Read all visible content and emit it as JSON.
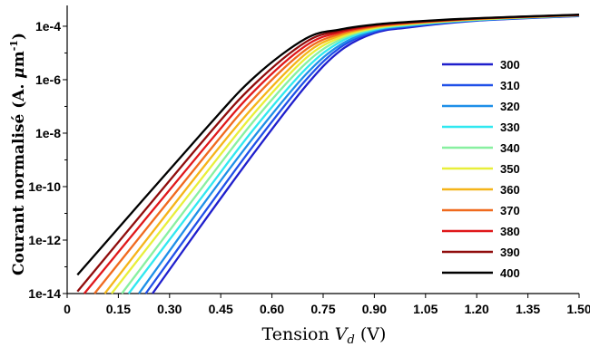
{
  "chart_data": {
    "type": "line",
    "xlabel": "Tension V_d (V)",
    "xlabel_parts": {
      "main": "Tension ",
      "var": "V",
      "sub": "d",
      "unit": " (V)"
    },
    "ylabel": "Courant normalisé (A. μm⁻¹)",
    "ylabel_parts": {
      "main": "Courant normalisé (A. ",
      "mu": "μ",
      "m": "m",
      "sup": "-1",
      "close": ")"
    },
    "x_range": [
      0,
      1.5
    ],
    "y_scale": "log",
    "y_range": [
      1e-14,
      0.0006
    ],
    "x_ticks": [
      "0",
      "0.15",
      "0.30",
      "0.45",
      "0.60",
      "0.75",
      "0.90",
      "1.05",
      "1.20",
      "1.35",
      "1.50"
    ],
    "x_tick_values": [
      0,
      0.15,
      0.3,
      0.45,
      0.6,
      0.75,
      0.9,
      1.05,
      1.2,
      1.35,
      1.5
    ],
    "y_ticks": [
      "1e-14",
      "1e-12",
      "1e-10",
      "1e-8",
      "1e-6",
      "1e-4"
    ],
    "y_tick_values": [
      1e-14,
      1e-12,
      1e-10,
      1e-08,
      1e-06,
      0.0001
    ],
    "grid": false,
    "legend_position": "right",
    "series": [
      {
        "name": "300",
        "color": "#1f1fcc",
        "x": [
          0.25,
          0.4,
          0.55,
          0.7,
          0.8,
          0.9,
          1.0,
          1.2,
          1.5
        ],
        "y": [
          1e-14,
          4.8e-12,
          2e-09,
          6e-07,
          1.2e-05,
          5.5e-05,
          9e-05,
          0.00016,
          0.00024
        ]
      },
      {
        "name": "310",
        "color": "#2050e8",
        "x": [
          0.23,
          0.4,
          0.55,
          0.7,
          0.8,
          0.9,
          1.0,
          1.2,
          1.5
        ],
        "y": [
          1e-14,
          1e-11,
          4e-09,
          1e-06,
          1.6e-05,
          6.2e-05,
          9.8e-05,
          0.000165,
          0.000245
        ]
      },
      {
        "name": "320",
        "color": "#1e8fe8",
        "x": [
          0.21,
          0.4,
          0.55,
          0.7,
          0.8,
          0.9,
          1.0,
          1.2,
          1.5
        ],
        "y": [
          1e-14,
          2.3e-11,
          8e-09,
          1.6e-06,
          2e-05,
          6.8e-05,
          0.000105,
          0.00017,
          0.00025
        ]
      },
      {
        "name": "330",
        "color": "#30e8f0",
        "x": [
          0.18,
          0.4,
          0.55,
          0.7,
          0.8,
          0.9,
          1.0,
          1.2,
          1.5
        ],
        "y": [
          1e-14,
          5e-11,
          1.6e-08,
          2.6e-06,
          2.6e-05,
          7.4e-05,
          0.00011,
          0.000175,
          0.000252
        ]
      },
      {
        "name": "340",
        "color": "#88f0a0",
        "x": [
          0.16,
          0.4,
          0.55,
          0.7,
          0.8,
          0.9,
          1.0,
          1.2,
          1.5
        ],
        "y": [
          1e-14,
          1.1e-10,
          3.2e-08,
          4.2e-06,
          3.2e-05,
          8e-05,
          0.000115,
          0.000178,
          0.000255
        ]
      },
      {
        "name": "350",
        "color": "#e8ef3a",
        "x": [
          0.13,
          0.4,
          0.55,
          0.7,
          0.8,
          0.9,
          1.0,
          1.2,
          1.5
        ],
        "y": [
          1e-14,
          2.5e-10,
          6e-08,
          6.5e-06,
          3.8e-05,
          8.6e-05,
          0.00012,
          0.000182,
          0.000258
        ]
      },
      {
        "name": "360",
        "color": "#f5b419",
        "x": [
          0.11,
          0.4,
          0.55,
          0.7,
          0.8,
          0.9,
          1.0,
          1.2,
          1.5
        ],
        "y": [
          1e-14,
          5.5e-10,
          1.1e-07,
          9.5e-06,
          4.5e-05,
          9.2e-05,
          0.000125,
          0.000186,
          0.00026
        ]
      },
      {
        "name": "370",
        "color": "#f06a1e",
        "x": [
          0.08,
          0.4,
          0.55,
          0.7,
          0.8,
          0.9,
          1.0,
          1.2,
          1.5
        ],
        "y": [
          1e-14,
          1.2e-09,
          2.2e-07,
          1.35e-05,
          5.2e-05,
          9.8e-05,
          0.00013,
          0.00019,
          0.000262
        ]
      },
      {
        "name": "380",
        "color": "#e0181a",
        "x": [
          0.05,
          0.4,
          0.55,
          0.7,
          0.8,
          0.9,
          1.0,
          1.2,
          1.5
        ],
        "y": [
          1e-14,
          2.6e-09,
          4e-07,
          1.9e-05,
          6e-05,
          0.000105,
          0.000135,
          0.000193,
          0.000265
        ]
      },
      {
        "name": "390",
        "color": "#900c0c",
        "x": [
          0.03,
          0.4,
          0.55,
          0.7,
          0.8,
          0.9,
          1.0,
          1.2,
          1.5
        ],
        "y": [
          1.2e-14,
          5.5e-09,
          7e-07,
          2.6e-05,
          6.8e-05,
          0.00011,
          0.00014,
          0.000196,
          0.000267
        ]
      },
      {
        "name": "400",
        "color": "#000000",
        "x": [
          0.03,
          0.4,
          0.55,
          0.7,
          0.8,
          0.9,
          1.0,
          1.2,
          1.5
        ],
        "y": [
          5e-14,
          1.2e-08,
          1.3e-06,
          3.5e-05,
          7.6e-05,
          0.000116,
          0.000145,
          0.0002,
          0.00027
        ]
      }
    ]
  }
}
